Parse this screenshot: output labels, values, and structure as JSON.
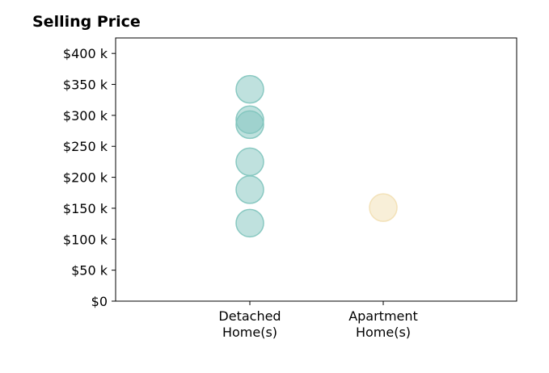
{
  "chart_data": {
    "type": "scatter",
    "title": "Selling Price",
    "xlabel": "",
    "ylabel": "",
    "categories": [
      {
        "key": "detached",
        "lines": [
          "Detached",
          "Home(s)"
        ]
      },
      {
        "key": "apartment",
        "lines": [
          "Apartment",
          "Home(s)"
        ]
      }
    ],
    "series": [
      {
        "category": "detached",
        "color": "#7fc4bd",
        "values": [
          342000,
          293000,
          285000,
          225000,
          180000,
          126000
        ]
      },
      {
        "category": "apartment",
        "color": "#f2dfb2",
        "values": [
          151000
        ]
      }
    ],
    "ylim": [
      0,
      425000
    ],
    "yticks": [
      {
        "value": 0,
        "label": "$0"
      },
      {
        "value": 50000,
        "label": "$50 k"
      },
      {
        "value": 100000,
        "label": "$100 k"
      },
      {
        "value": 150000,
        "label": "$150 k"
      },
      {
        "value": 200000,
        "label": "$200 k"
      },
      {
        "value": 250000,
        "label": "$250 k"
      },
      {
        "value": 300000,
        "label": "$300 k"
      },
      {
        "value": 350000,
        "label": "$350 k"
      },
      {
        "value": 400000,
        "label": "$400 k"
      }
    ],
    "grid": false,
    "legend": "none"
  }
}
